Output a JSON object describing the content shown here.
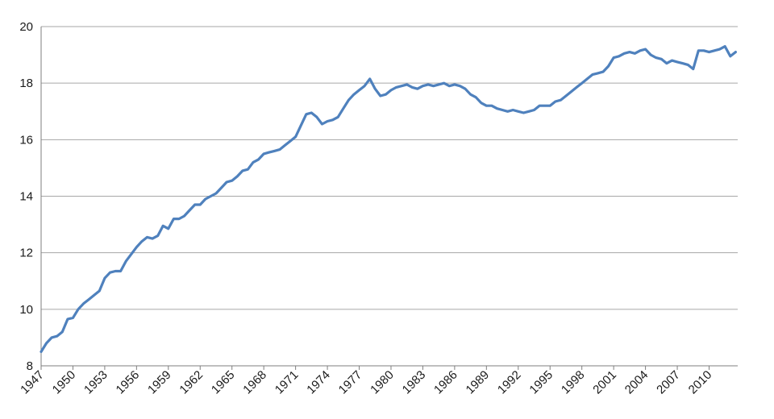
{
  "chart_data": {
    "type": "line",
    "title": "",
    "xlabel": "",
    "ylabel": "",
    "xlim": [
      1947,
      2012.7
    ],
    "ylim": [
      8,
      20
    ],
    "y_ticks": [
      8,
      10,
      12,
      14,
      16,
      18,
      20
    ],
    "y_tick_labels": [
      "8",
      "10",
      "12",
      "14",
      "16",
      "18",
      "20"
    ],
    "x_ticks": [
      1947,
      1950,
      1953,
      1956,
      1959,
      1962,
      1965,
      1968,
      1971,
      1974,
      1977,
      1980,
      1983,
      1986,
      1989,
      1992,
      1995,
      1998,
      2001,
      2004,
      2007,
      2010
    ],
    "x_tick_labels": [
      "1947",
      "1950",
      "1953",
      "1956",
      "1959",
      "1962",
      "1965",
      "1968",
      "1971",
      "1974",
      "1977",
      "1980",
      "1983",
      "1986",
      "1989",
      "1992",
      "1995",
      "1998",
      "2001",
      "2004",
      "2007",
      "2010"
    ],
    "grid": "horizontal",
    "legend": "none",
    "line_color": "#4f81bd",
    "series": [
      {
        "x": [
          1947,
          1947.5,
          1948,
          1948.5,
          1949,
          1949.5,
          1950,
          1950.5,
          1951,
          1951.5,
          1952,
          1952.5,
          1953,
          1953.5,
          1954,
          1954.5,
          1955,
          1955.5,
          1956,
          1956.5,
          1957,
          1957.5,
          1958,
          1958.5,
          1959,
          1959.5,
          1960,
          1960.5,
          1961,
          1961.5,
          1962,
          1962.5,
          1963,
          1963.5,
          1964,
          1964.5,
          1965,
          1965.5,
          1966,
          1966.5,
          1967,
          1967.5,
          1968,
          1968.5,
          1969,
          1969.5,
          1970,
          1970.5,
          1971,
          1971.5,
          1972,
          1972.5,
          1973,
          1973.5,
          1974,
          1974.5,
          1975,
          1975.5,
          1976,
          1976.5,
          1977,
          1977.5,
          1978,
          1978.5,
          1979,
          1979.5,
          1980,
          1980.5,
          1981,
          1981.5,
          1982,
          1982.5,
          1983,
          1983.5,
          1984,
          1984.5,
          1985,
          1985.5,
          1986,
          1986.5,
          1987,
          1987.5,
          1988,
          1988.5,
          1989,
          1989.5,
          1990,
          1990.5,
          1991,
          1991.5,
          1992,
          1992.5,
          1993,
          1993.5,
          1994,
          1994.5,
          1995,
          1995.5,
          1996,
          1996.5,
          1997,
          1997.5,
          1998,
          1998.5,
          1999,
          1999.5,
          2000,
          2000.5,
          2001,
          2001.5,
          2002,
          2002.5,
          2003,
          2003.5,
          2004,
          2004.5,
          2005,
          2005.5,
          2006,
          2006.5,
          2007,
          2007.5,
          2008,
          2008.5,
          2009,
          2009.5,
          2010,
          2010.5,
          2011,
          2011.5,
          2012,
          2012.5
        ],
        "values": [
          8.5,
          8.8,
          9.0,
          9.05,
          9.2,
          9.65,
          9.7,
          10.0,
          10.2,
          10.35,
          10.5,
          10.65,
          11.1,
          11.3,
          11.35,
          11.35,
          11.7,
          11.95,
          12.2,
          12.4,
          12.55,
          12.5,
          12.6,
          12.95,
          12.85,
          13.2,
          13.2,
          13.3,
          13.5,
          13.7,
          13.7,
          13.9,
          14.0,
          14.1,
          14.3,
          14.5,
          14.55,
          14.7,
          14.9,
          14.95,
          15.2,
          15.3,
          15.5,
          15.55,
          15.6,
          15.65,
          15.8,
          15.95,
          16.1,
          16.5,
          16.9,
          16.95,
          16.8,
          16.55,
          16.65,
          16.7,
          16.8,
          17.1,
          17.4,
          17.6,
          17.75,
          17.9,
          18.15,
          17.8,
          17.55,
          17.6,
          17.75,
          17.85,
          17.9,
          17.95,
          17.85,
          17.8,
          17.9,
          17.95,
          17.9,
          17.95,
          18.0,
          17.9,
          17.95,
          17.9,
          17.8,
          17.6,
          17.5,
          17.3,
          17.2,
          17.2,
          17.1,
          17.05,
          17.0,
          17.05,
          17.0,
          16.95,
          17.0,
          17.05,
          17.2,
          17.2,
          17.2,
          17.35,
          17.4,
          17.55,
          17.7,
          17.85,
          18.0,
          18.15,
          18.3,
          18.35,
          18.4,
          18.6,
          18.9,
          18.95,
          19.05,
          19.1,
          19.05,
          19.15,
          19.2,
          19.0,
          18.9,
          18.85,
          18.7,
          18.8,
          18.75,
          18.7,
          18.65,
          18.5,
          19.15,
          19.15,
          19.1,
          19.15,
          19.2,
          19.3,
          18.95,
          19.1
        ]
      }
    ]
  }
}
